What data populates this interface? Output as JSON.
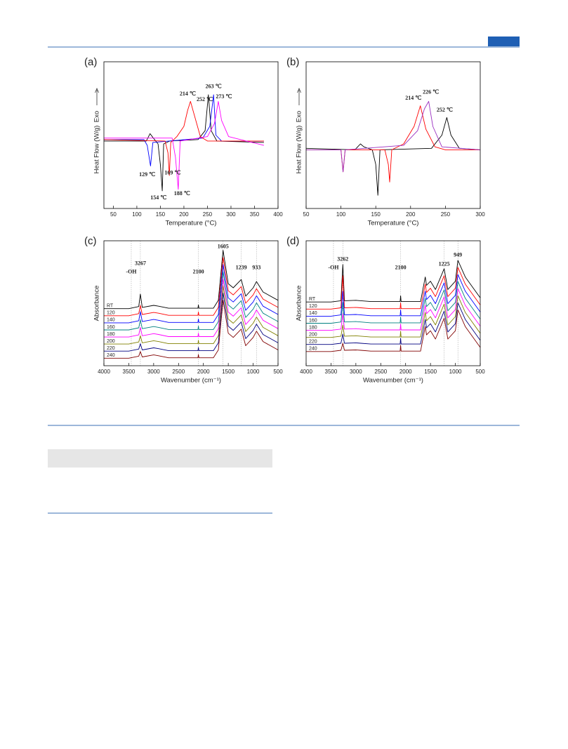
{
  "chart_data": [
    {
      "type": "line",
      "label": "(a)",
      "xlabel": "Temperature (°C)",
      "ylabel": "Heat Flow (W/g)",
      "exo_label": "Exo",
      "xlim": [
        30,
        400
      ],
      "xticks": [
        50,
        100,
        150,
        200,
        250,
        300,
        350,
        400
      ],
      "ylim": [
        0,
        10
      ],
      "series": [
        {
          "color": "#000000",
          "x": [
            30,
            120,
            128,
            135,
            145,
            150,
            154,
            157,
            170,
            230,
            245,
            252,
            258,
            270,
            370
          ],
          "values": [
            4.6,
            4.6,
            5.1,
            4.8,
            4.4,
            3.0,
            1.2,
            4.4,
            4.6,
            4.7,
            5.3,
            7.75,
            5.3,
            4.6,
            4.5
          ]
        },
        {
          "color": "#0000ff",
          "x": [
            30,
            115,
            122,
            129,
            134,
            240,
            255,
            263,
            268,
            280,
            370
          ],
          "values": [
            4.7,
            4.7,
            4.3,
            2.9,
            4.5,
            4.8,
            5.6,
            7.75,
            5.0,
            4.6,
            4.6
          ]
        },
        {
          "color": "#ff0000",
          "x": [
            30,
            160,
            166,
            169,
            172,
            185,
            200,
            208,
            214,
            220,
            235,
            250,
            370
          ],
          "values": [
            4.7,
            4.6,
            3.8,
            2.25,
            4.5,
            4.9,
            5.6,
            6.7,
            7.3,
            6.6,
            4.9,
            4.6,
            4.6
          ]
        },
        {
          "color": "#ff00ff",
          "x": [
            30,
            175,
            182,
            188,
            192,
            250,
            265,
            273,
            280,
            295,
            320,
            370
          ],
          "values": [
            4.8,
            4.8,
            3.5,
            1.3,
            4.6,
            4.9,
            5.8,
            7.3,
            6.0,
            4.9,
            4.7,
            4.3
          ]
        }
      ],
      "annotations": [
        {
          "text": "214 ℃",
          "x": 208,
          "y": 7.8
        },
        {
          "text": "252 ℃",
          "x": 244,
          "y": 7.4
        },
        {
          "text": "263 ℃",
          "x": 263,
          "y": 8.3
        },
        {
          "text": "273 ℃",
          "x": 285,
          "y": 7.6
        },
        {
          "text": "129 ℃",
          "x": 122,
          "y": 2.3
        },
        {
          "text": "154 ℃",
          "x": 146,
          "y": 0.7
        },
        {
          "text": "169 ℃",
          "x": 176,
          "y": 2.4
        },
        {
          "text": "188 ℃",
          "x": 196,
          "y": 1.0
        }
      ]
    },
    {
      "type": "line",
      "label": "(b)",
      "xlabel": "Temperature (°C)",
      "ylabel": "Heat Flow (W/g)",
      "exo_label": "Exo",
      "xlim": [
        50,
        300
      ],
      "xticks": [
        50,
        100,
        150,
        200,
        250,
        300
      ],
      "ylim": [
        0,
        10
      ],
      "series": [
        {
          "color": "#000000",
          "x": [
            50,
            120,
            128,
            133,
            145,
            150,
            153,
            156,
            230,
            245,
            252,
            258,
            270,
            300
          ],
          "values": [
            4.1,
            4.0,
            4.4,
            4.2,
            4.0,
            3.0,
            0.9,
            4.0,
            4.1,
            5.0,
            6.2,
            5.0,
            4.1,
            4.0
          ]
        },
        {
          "color": "#ff0000",
          "x": [
            50,
            100,
            103,
            106,
            163,
            168,
            170,
            173,
            190,
            205,
            214,
            222,
            235,
            250,
            300
          ],
          "values": [
            4.0,
            4.0,
            2.5,
            4.0,
            4.0,
            3.0,
            1.8,
            4.0,
            4.4,
            5.6,
            7.0,
            5.4,
            4.2,
            4.0,
            4.0
          ]
        },
        {
          "color": "#9a2fc0",
          "x": [
            50,
            100,
            103,
            106,
            190,
            210,
            220,
            226,
            232,
            245,
            300
          ],
          "values": [
            4.0,
            4.0,
            2.5,
            4.0,
            4.3,
            5.3,
            6.8,
            7.3,
            5.6,
            4.2,
            4.0
          ]
        }
      ],
      "annotations": [
        {
          "text": "214 ℃",
          "x": 204,
          "y": 7.5
        },
        {
          "text": "226 ℃",
          "x": 229,
          "y": 7.9
        },
        {
          "text": "252 ℃",
          "x": 249,
          "y": 6.7
        }
      ]
    },
    {
      "type": "spectra",
      "label": "(c)",
      "xlabel": "Wavenumber (cm⁻¹)",
      "ylabel": "Absorbance",
      "guide_lines": true,
      "xlim": [
        4000,
        500
      ],
      "xticks": [
        4000,
        3500,
        3000,
        2500,
        2000,
        1500,
        1000,
        500
      ],
      "ylim": [
        0,
        30
      ],
      "x": [
        4000,
        3500,
        3300,
        3267,
        3230,
        3000,
        2900,
        2700,
        2110,
        2100,
        2090,
        1800,
        1700,
        1605,
        1500,
        1400,
        1239,
        1150,
        1000,
        933,
        800,
        500
      ],
      "series": [
        {
          "name": "RT",
          "color": "#000000",
          "values": [
            13.7,
            13.7,
            14.2,
            17.2,
            14.0,
            14.5,
            14.3,
            13.8,
            13.8,
            14.6,
            13.8,
            13.8,
            15.7,
            27.7,
            19.7,
            18.7,
            20.7,
            16.7,
            18.7,
            20.2,
            17.7,
            15.7
          ]
        },
        {
          "name": "120",
          "color": "#ff0000",
          "values": [
            12.0,
            12.0,
            12.5,
            14.5,
            12.3,
            12.8,
            12.6,
            12.1,
            12.1,
            12.9,
            12.1,
            12.1,
            14.0,
            26.0,
            18.0,
            17.0,
            19.0,
            15.0,
            17.0,
            18.5,
            16.0,
            14.0
          ]
        },
        {
          "name": "140",
          "color": "#0000ff",
          "values": [
            10.3,
            10.3,
            10.8,
            13.0,
            10.6,
            11.1,
            10.9,
            10.4,
            10.4,
            11.2,
            10.4,
            10.4,
            12.3,
            24.3,
            16.3,
            15.3,
            17.3,
            13.3,
            15.3,
            16.8,
            14.3,
            12.3
          ]
        },
        {
          "name": "160",
          "color": "#008080",
          "values": [
            8.6,
            8.6,
            9.1,
            11.0,
            8.9,
            9.4,
            9.2,
            8.7,
            8.7,
            9.5,
            8.7,
            8.7,
            10.6,
            22.6,
            14.6,
            13.6,
            15.6,
            11.6,
            13.6,
            15.1,
            12.6,
            10.6
          ]
        },
        {
          "name": "180",
          "color": "#ff00ff",
          "values": [
            6.9,
            6.9,
            7.4,
            9.2,
            7.2,
            7.7,
            7.5,
            7.0,
            7.0,
            7.8,
            7.0,
            7.0,
            8.9,
            20.9,
            12.9,
            11.9,
            13.9,
            9.9,
            11.9,
            13.4,
            10.9,
            8.9
          ]
        },
        {
          "name": "200",
          "color": "#808000",
          "values": [
            5.2,
            5.2,
            5.7,
            7.2,
            5.5,
            6.0,
            5.8,
            5.3,
            5.3,
            6.1,
            5.3,
            5.3,
            7.2,
            19.2,
            11.2,
            10.2,
            12.2,
            8.2,
            10.2,
            11.7,
            9.2,
            7.2
          ]
        },
        {
          "name": "220",
          "color": "#000080",
          "values": [
            3.5,
            3.5,
            4.0,
            5.3,
            3.8,
            4.3,
            4.1,
            3.6,
            3.6,
            4.4,
            3.6,
            3.6,
            5.5,
            17.5,
            9.5,
            8.5,
            10.5,
            6.5,
            8.5,
            10.0,
            7.5,
            5.5
          ]
        },
        {
          "name": "240",
          "color": "#800000",
          "values": [
            1.8,
            1.8,
            2.3,
            3.4,
            2.1,
            2.6,
            2.4,
            1.9,
            1.9,
            2.7,
            1.9,
            1.9,
            3.8,
            15.8,
            7.8,
            6.8,
            8.8,
            4.8,
            6.8,
            8.3,
            5.8,
            3.8
          ]
        }
      ],
      "annotations": [
        {
          "text": "-OH",
          "x": 3450,
          "y": 22.5
        },
        {
          "text": "3267",
          "x": 3267,
          "y": 24.5
        },
        {
          "text": "2100",
          "x": 2100,
          "y": 22.5
        },
        {
          "text": "1605",
          "x": 1605,
          "y": 28.5
        },
        {
          "text": "1239",
          "x": 1239,
          "y": 23.5
        },
        {
          "text": "933",
          "x": 933,
          "y": 23.5
        }
      ]
    },
    {
      "type": "spectra",
      "label": "(d)",
      "xlabel": "Wavenumber (cm⁻¹)",
      "ylabel": "Absorbance",
      "guide_lines": true,
      "xlim": [
        4000,
        500
      ],
      "xticks": [
        4000,
        3500,
        3000,
        2500,
        2000,
        1500,
        1000,
        500
      ],
      "ylim": [
        0,
        30
      ],
      "x": [
        4000,
        3500,
        3300,
        3262,
        3230,
        3000,
        2900,
        2700,
        2110,
        2100,
        2090,
        1700,
        1605,
        1580,
        1500,
        1400,
        1225,
        1150,
        1000,
        949,
        800,
        500
      ],
      "series": [
        {
          "name": "RT",
          "color": "#000000",
          "values": [
            15.3,
            15.3,
            15.6,
            24.3,
            15.6,
            15.7,
            15.6,
            15.4,
            15.4,
            16.8,
            15.4,
            15.4,
            21.3,
            19.3,
            20.3,
            18.3,
            23.3,
            18.3,
            20.3,
            25.3,
            21.3,
            16.3
          ]
        },
        {
          "name": "120",
          "color": "#ff0000",
          "values": [
            13.6,
            13.6,
            13.9,
            21.6,
            13.9,
            14.0,
            13.9,
            13.7,
            13.7,
            15.1,
            13.7,
            13.7,
            19.6,
            17.6,
            18.6,
            16.6,
            21.6,
            16.6,
            18.6,
            23.6,
            19.6,
            14.6
          ]
        },
        {
          "name": "140",
          "color": "#0000ff",
          "values": [
            11.9,
            11.9,
            12.2,
            17.9,
            12.2,
            12.3,
            12.2,
            12.0,
            12.0,
            13.4,
            12.0,
            12.0,
            17.9,
            15.9,
            16.9,
            14.9,
            19.9,
            14.9,
            16.9,
            21.9,
            17.9,
            12.9
          ]
        },
        {
          "name": "160",
          "color": "#008080",
          "values": [
            10.2,
            10.2,
            10.5,
            15.2,
            10.5,
            10.6,
            10.5,
            10.3,
            10.3,
            11.7,
            10.3,
            10.3,
            16.2,
            14.2,
            15.2,
            13.2,
            18.2,
            13.2,
            15.2,
            20.2,
            16.2,
            11.2
          ]
        },
        {
          "name": "180",
          "color": "#ff00ff",
          "values": [
            8.5,
            8.5,
            8.8,
            12.5,
            8.8,
            8.9,
            8.8,
            8.6,
            8.6,
            10.0,
            8.6,
            8.6,
            14.5,
            12.5,
            13.5,
            11.5,
            16.5,
            11.5,
            13.5,
            18.5,
            14.5,
            9.5
          ]
        },
        {
          "name": "200",
          "color": "#808000",
          "values": [
            6.8,
            6.8,
            7.1,
            9.8,
            7.1,
            7.2,
            7.1,
            6.9,
            6.9,
            8.3,
            6.9,
            6.9,
            12.8,
            10.8,
            11.8,
            9.8,
            14.8,
            9.8,
            11.8,
            16.8,
            12.8,
            7.8
          ]
        },
        {
          "name": "220",
          "color": "#000080",
          "values": [
            5.1,
            5.1,
            5.4,
            7.6,
            5.4,
            5.5,
            5.4,
            5.2,
            5.2,
            6.6,
            5.2,
            5.2,
            11.1,
            9.1,
            10.1,
            8.1,
            13.1,
            8.1,
            10.1,
            15.1,
            11.1,
            6.1
          ]
        },
        {
          "name": "240",
          "color": "#800000",
          "values": [
            3.4,
            3.4,
            3.7,
            5.4,
            3.7,
            3.8,
            3.7,
            3.5,
            3.5,
            4.9,
            3.5,
            3.5,
            9.4,
            7.4,
            8.4,
            6.4,
            11.4,
            6.4,
            8.4,
            13.4,
            9.4,
            4.4
          ]
        }
      ],
      "annotations": [
        {
          "text": "-OH",
          "x": 3450,
          "y": 23.5
        },
        {
          "text": "3262",
          "x": 3262,
          "y": 25.5
        },
        {
          "text": "2100",
          "x": 2100,
          "y": 23.5
        },
        {
          "text": "1225",
          "x": 1225,
          "y": 24.3
        },
        {
          "text": "949",
          "x": 949,
          "y": 26.5
        }
      ]
    }
  ]
}
